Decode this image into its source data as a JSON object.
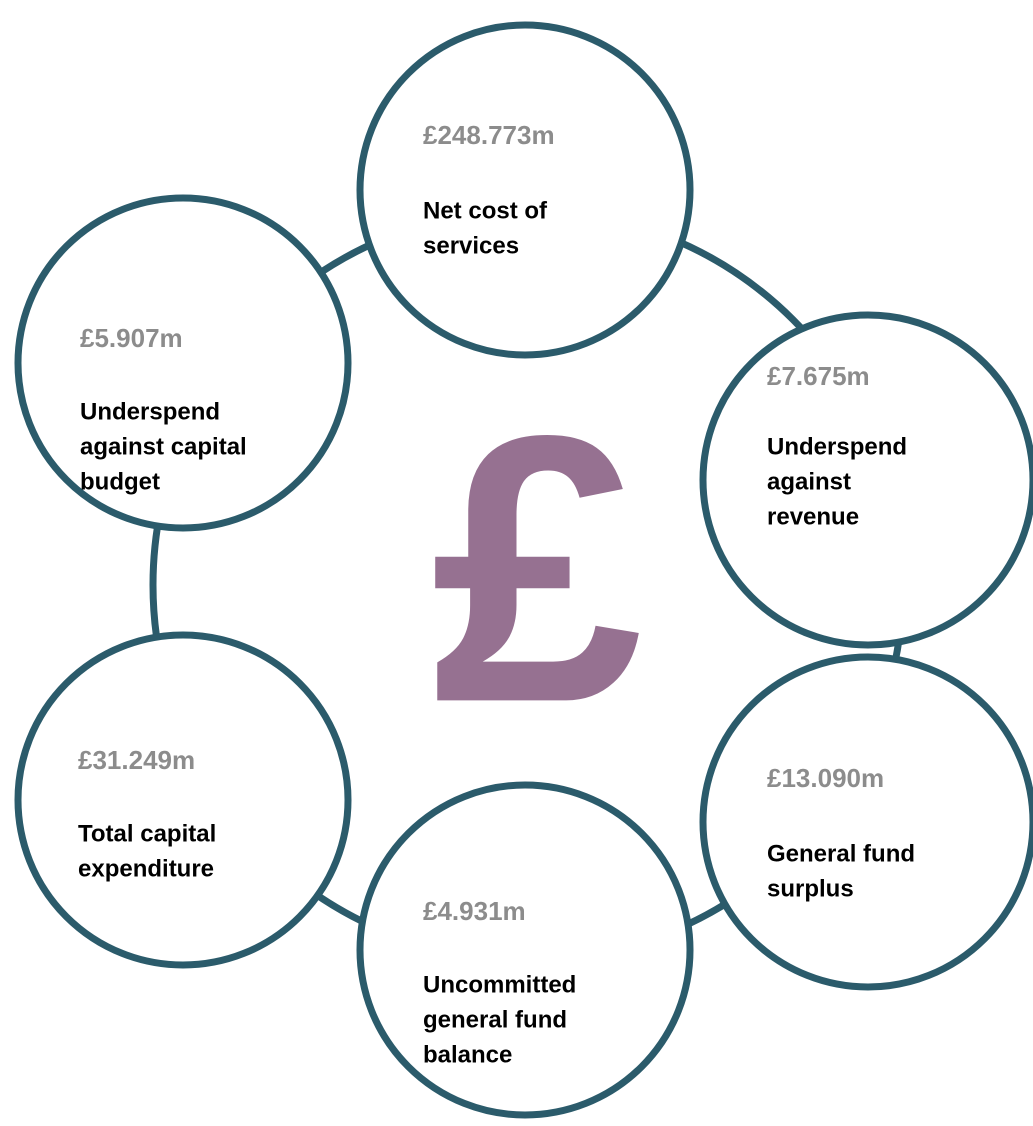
{
  "symbol": "£",
  "nodes": [
    {
      "value": "£248.773m",
      "label": [
        "Net cost of",
        "services"
      ]
    },
    {
      "value": "£7.675m",
      "label": [
        "Underspend",
        "against",
        "revenue"
      ]
    },
    {
      "value": "£13.090m",
      "label": [
        "General fund",
        "surplus"
      ]
    },
    {
      "value": "£4.931m",
      "label": [
        "Uncommitted",
        "general fund",
        "balance"
      ]
    },
    {
      "value": "£31.249m",
      "label": [
        "Total capital",
        "expenditure"
      ]
    },
    {
      "value": "£5.907m",
      "label": [
        "Underspend",
        "against capital",
        "budget"
      ]
    }
  ]
}
